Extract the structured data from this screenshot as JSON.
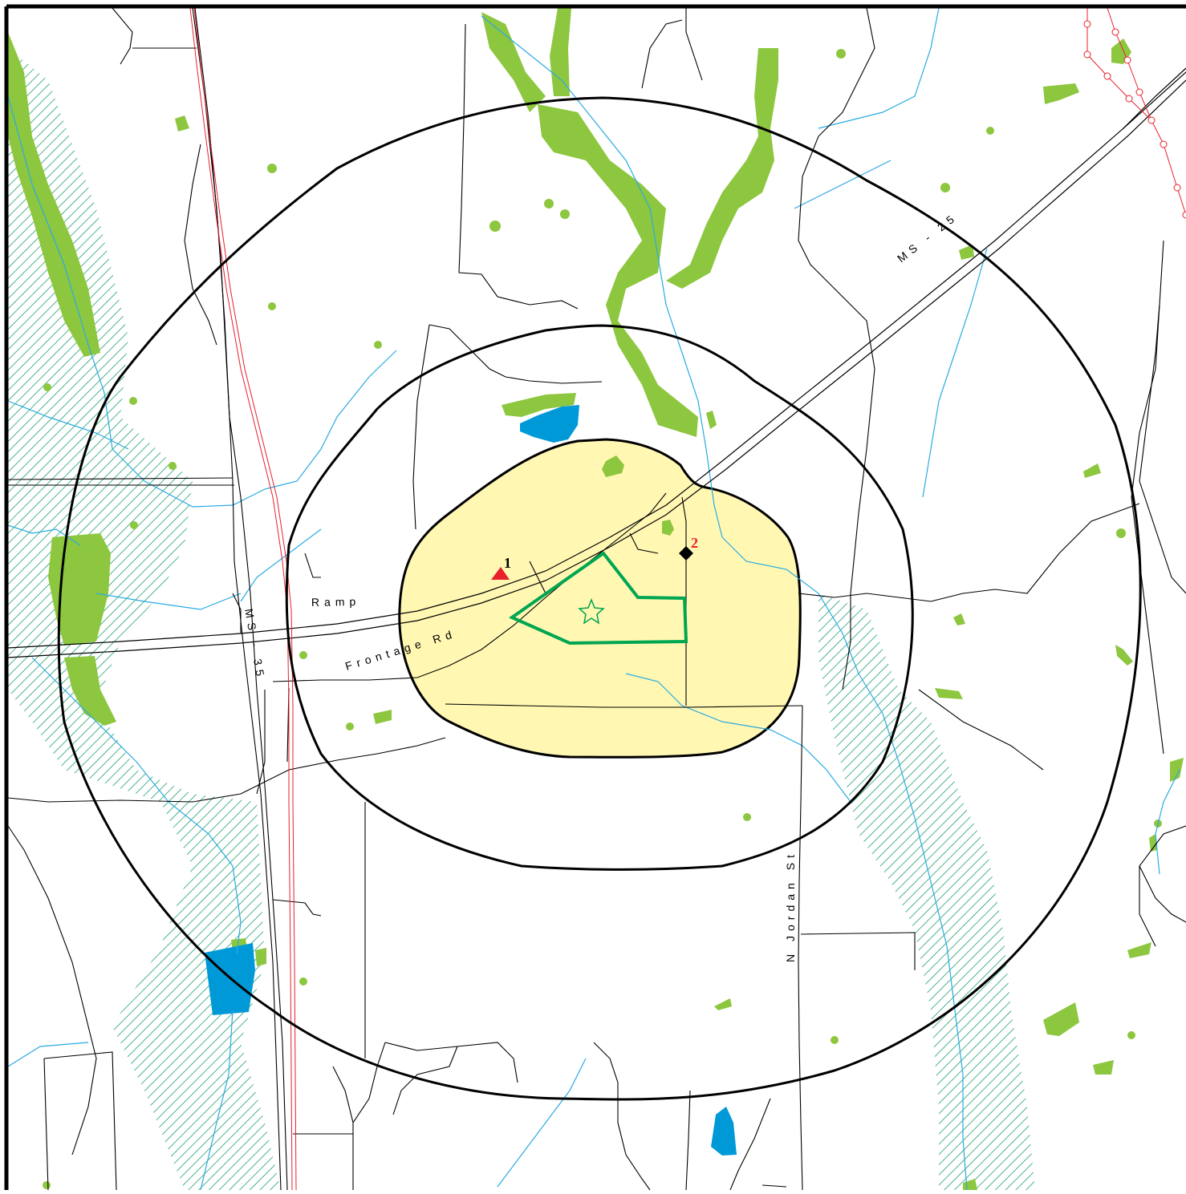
{
  "map": {
    "colors": {
      "vegetation": "#8dc63f",
      "water": "#0099d8",
      "stream": "#29abe2",
      "wetland_hatch": "#20a070",
      "road": "#000000",
      "railroad": "#e8202a",
      "transmission_line": "#e8202a",
      "impact_zone": "#fff7b2",
      "facility_outline": "#00a651",
      "buffer_ring": "#000000",
      "frame": "#000000"
    },
    "road_labels": {
      "ramp": "Ramp",
      "frontage": "Frontage Rd",
      "ms35": "MS - 35",
      "ms25": "MS - 25",
      "jordan": "N Jordan St"
    },
    "sites": [
      {
        "id": "1",
        "symbol": "red-triangle",
        "color": "#e8202a"
      },
      {
        "id": "2",
        "symbol": "black-diamond",
        "color": "#e8202a"
      }
    ],
    "facility_symbol": "green-star-icon"
  }
}
